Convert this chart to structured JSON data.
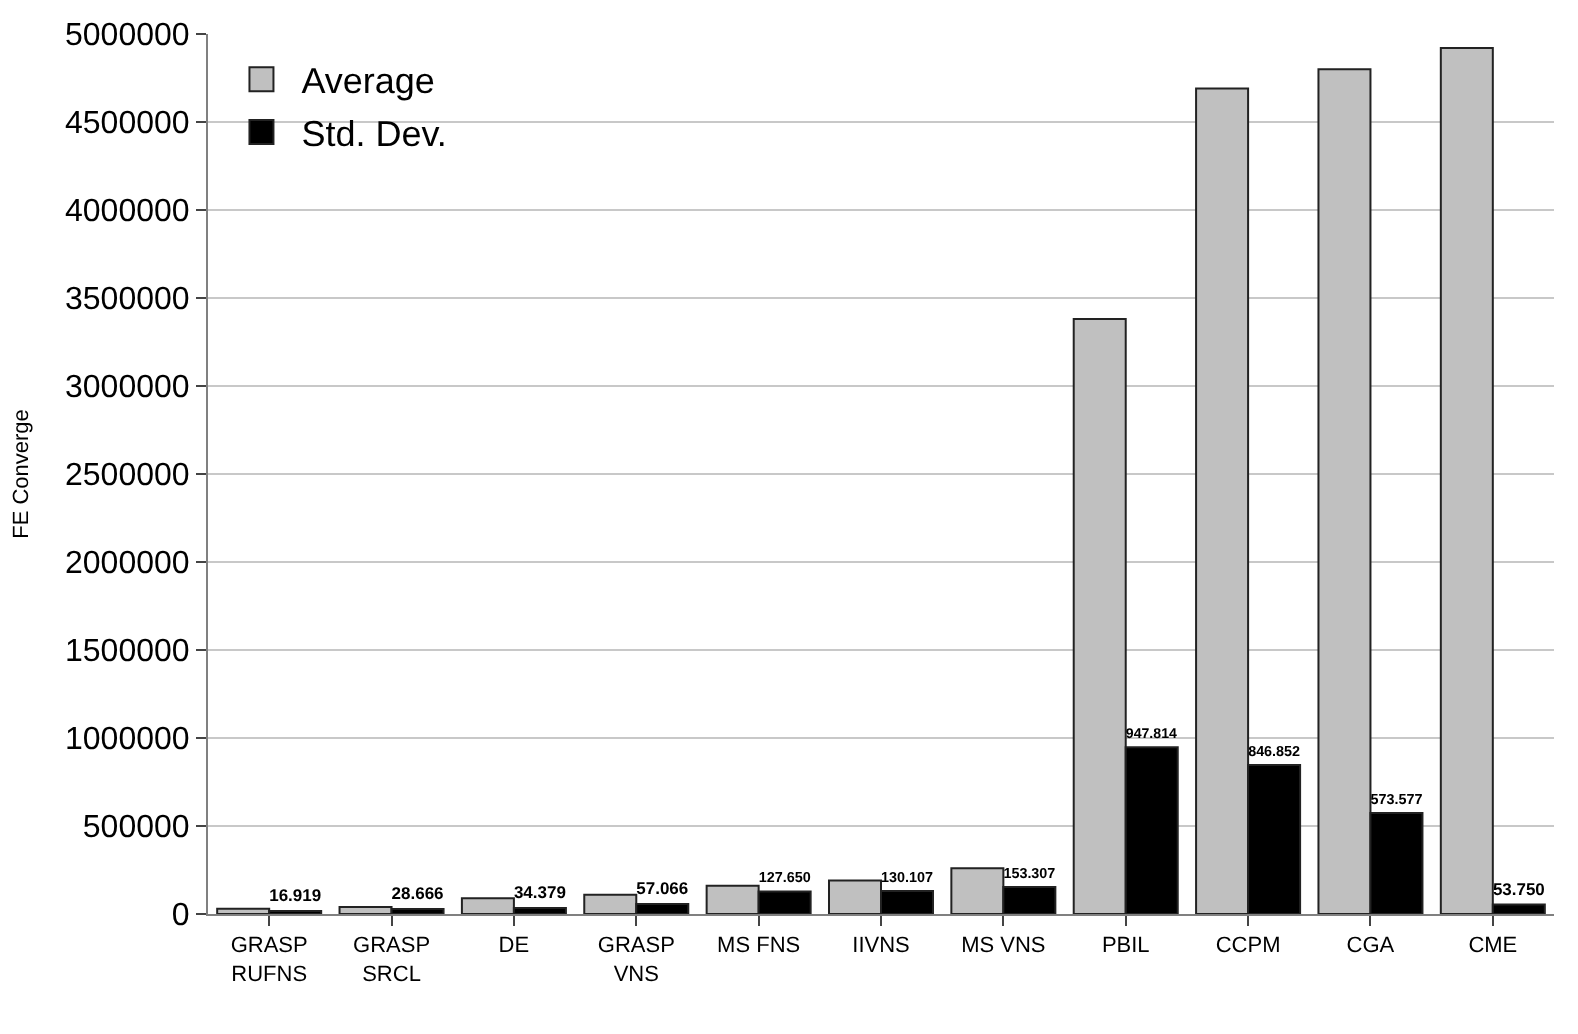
{
  "chart_data": {
    "type": "bar",
    "ylabel": "FE Converge",
    "categories": [
      "GRASP\nRUFNS",
      "GRASP\nSRCL",
      "DE",
      "GRASP\nVNS",
      "MS FNS",
      "IIVNS",
      "MS VNS",
      "PBIL",
      "CCPM",
      "CGA",
      "CME"
    ],
    "series": [
      {
        "name": "Average",
        "color": "#c0c0c0",
        "values": [
          30000,
          40000,
          90000,
          110000,
          160000,
          190000,
          260000,
          3380000,
          4690000,
          4800000,
          4920000
        ]
      },
      {
        "name": "Std. Dev.",
        "color": "#000000",
        "values": [
          16919,
          28666,
          34379,
          57066,
          127650,
          130107,
          153307,
          947814,
          846852,
          573577,
          53750
        ],
        "value_labels": [
          "16.919",
          "28.666",
          "34.379",
          "57.066",
          "127.650",
          "130.107",
          "153.307",
          "947.814",
          "846.852",
          "573.577",
          "53.750"
        ]
      }
    ],
    "ylim": [
      0,
      5000000
    ],
    "yticks": [
      0,
      500000,
      1000000,
      1500000,
      2000000,
      2500000,
      3000000,
      3500000,
      4000000,
      4500000,
      5000000
    ],
    "grid": "y",
    "legend": "top left"
  }
}
